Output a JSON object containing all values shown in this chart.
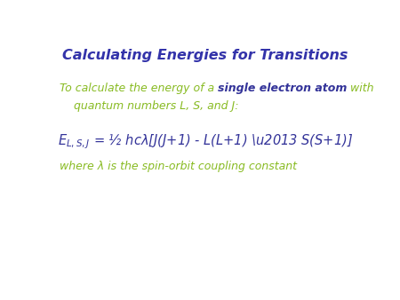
{
  "title": "Calculating Energies for Transitions",
  "title_color": "#3333aa",
  "title_fontsize": 11.5,
  "bg_color": "#ffffff",
  "green_color": "#88bb22",
  "blue_color": "#333399",
  "body_fontsize": 9.0,
  "eq_fontsize": 10.5,
  "line1a_green": "To calculate the energy of a ",
  "line1b_blue": "single electron atom",
  "line1c_green": " with",
  "line2_green": "    quantum numbers L, S, and J:",
  "where_line": "where λ is the spin-orbit coupling constant"
}
